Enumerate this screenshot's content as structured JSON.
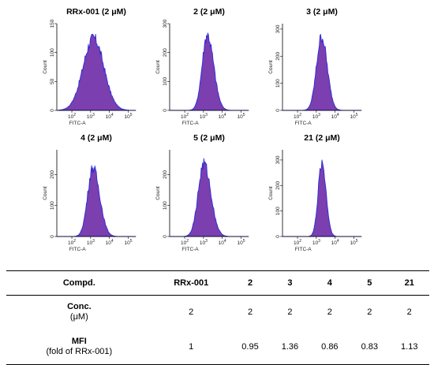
{
  "chart_data": [
    {
      "type": "histogram",
      "title": "RRx-001 (2 μM)",
      "xlabel": "FITC-A",
      "ylabel": "Count",
      "x_scale": "log",
      "x_tick_exponents": [
        2,
        3,
        4,
        5
      ],
      "y_ticks": [
        0,
        50,
        100,
        150
      ],
      "ylim": [
        0,
        150
      ],
      "peak_log": 3.15,
      "peak_count": 125,
      "sigma_left": 0.55,
      "sigma_right": 0.55
    },
    {
      "type": "histogram",
      "title": "2 (2 μM)",
      "xlabel": "FITC-A",
      "ylabel": "Count",
      "x_scale": "log",
      "x_tick_exponents": [
        2,
        3,
        4,
        5
      ],
      "y_ticks": [
        0,
        100,
        200,
        300
      ],
      "ylim": [
        0,
        300
      ],
      "peak_log": 3.2,
      "peak_count": 262,
      "sigma_left": 0.27,
      "sigma_right": 0.34
    },
    {
      "type": "histogram",
      "title": "3 (2 μM)",
      "xlabel": "FITC-A",
      "ylabel": "Count",
      "x_scale": "log",
      "x_tick_exponents": [
        2,
        3,
        4,
        5
      ],
      "y_ticks": [
        0,
        100,
        200,
        300
      ],
      "ylim": [
        0,
        320
      ],
      "peak_log": 3.28,
      "peak_count": 272,
      "sigma_left": 0.27,
      "sigma_right": 0.3
    },
    {
      "type": "histogram",
      "title": "4 (2 μM)",
      "xlabel": "FITC-A",
      "ylabel": "Count",
      "x_scale": "log",
      "x_tick_exponents": [
        2,
        3,
        4,
        5
      ],
      "y_ticks": [
        0,
        100,
        200
      ],
      "ylim": [
        0,
        280
      ],
      "peak_log": 3.12,
      "peak_count": 222,
      "sigma_left": 0.28,
      "sigma_right": 0.36
    },
    {
      "type": "histogram",
      "title": "5 (2 μM)",
      "xlabel": "FITC-A",
      "ylabel": "Count",
      "x_scale": "log",
      "x_tick_exponents": [
        2,
        3,
        4,
        5
      ],
      "y_ticks": [
        0,
        100,
        200
      ],
      "ylim": [
        0,
        280
      ],
      "peak_log": 3.02,
      "peak_count": 235,
      "sigma_left": 0.3,
      "sigma_right": 0.37
    },
    {
      "type": "histogram",
      "title": "21 (2 μM)",
      "xlabel": "FITC-A",
      "ylabel": "Count",
      "x_scale": "log",
      "x_tick_exponents": [
        2,
        3,
        4,
        5
      ],
      "y_ticks": [
        0,
        100,
        200,
        300
      ],
      "ylim": [
        0,
        340
      ],
      "peak_log": 3.3,
      "peak_count": 290,
      "sigma_left": 0.2,
      "sigma_right": 0.22
    }
  ],
  "colors": {
    "fill": "#7b3fb0",
    "outline": "#2b2bd6",
    "axis": "#000000"
  },
  "table": {
    "headers": [
      "Compd.",
      "RRx-001",
      "2",
      "3",
      "4",
      "5",
      "21"
    ],
    "row_conc": {
      "label": "Conc.",
      "unit": "(μM)",
      "values": [
        "2",
        "2",
        "2",
        "2",
        "2",
        "2"
      ]
    },
    "row_mfi": {
      "label": "MFI",
      "unit": "(fold of RRx-001)",
      "values": [
        "1",
        "0.95",
        "1.36",
        "0.86",
        "0.83",
        "1.13"
      ]
    }
  }
}
